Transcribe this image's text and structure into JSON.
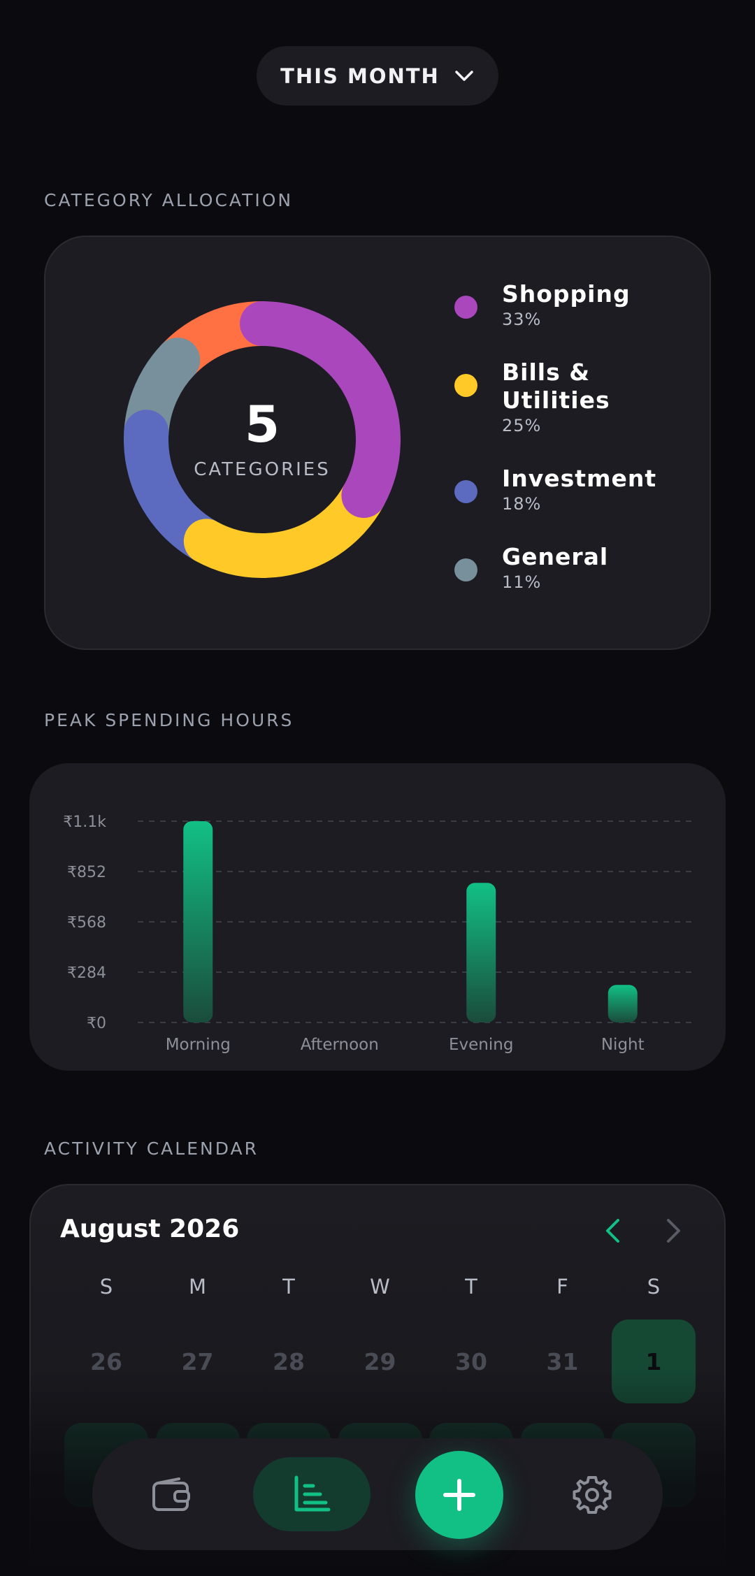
{
  "period_selector": {
    "label": "THIS MONTH",
    "icon": "chevron-down-icon"
  },
  "allocation": {
    "section_label": "CATEGORY ALLOCATION",
    "center_count": "5",
    "center_label": "CATEGORIES",
    "items": [
      {
        "name": "Shopping",
        "pct": "33%",
        "color": "#ab47bc"
      },
      {
        "name": "Bills & Utilities",
        "pct": "25%",
        "color": "#ffca28"
      },
      {
        "name": "Investment",
        "pct": "18%",
        "color": "#5c6bc0"
      },
      {
        "name": "General",
        "pct": "11%",
        "color": "#78909c"
      }
    ],
    "donut_segments": [
      {
        "name": "Shopping",
        "value": 33,
        "color": "#ab47bc"
      },
      {
        "name": "Bills & Utilities",
        "value": 25,
        "color": "#ffca28"
      },
      {
        "name": "Investment",
        "value": 18,
        "color": "#5c6bc0"
      },
      {
        "name": "General",
        "value": 11,
        "color": "#78909c"
      },
      {
        "name": "",
        "value": 13,
        "color": "#ff7043"
      }
    ]
  },
  "peak": {
    "section_label": "PEAK SPENDING HOURS",
    "chart_data": {
      "type": "bar",
      "categories": [
        "Morning",
        "Afternoon",
        "Evening",
        "Night"
      ],
      "values": [
        1136,
        0,
        788,
        212
      ],
      "ylim": [
        0,
        1136
      ],
      "yticks": [
        "₹0",
        "₹284",
        "₹568",
        "₹852",
        "₹1.1k"
      ],
      "ytick_values": [
        0,
        284,
        568,
        852,
        1136
      ],
      "grid": true,
      "bar_color": "#12c085"
    }
  },
  "calendar": {
    "section_label": "ACTIVITY CALENDAR",
    "month_title": "August 2026",
    "weekdays": [
      "S",
      "M",
      "T",
      "W",
      "T",
      "F",
      "S"
    ],
    "row1": [
      "26",
      "27",
      "28",
      "29",
      "30",
      "31",
      "1"
    ],
    "accent": "#12c085"
  },
  "nav": {
    "items": [
      "wallet-icon",
      "chart-icon",
      "plus-icon",
      "gear-icon"
    ]
  }
}
